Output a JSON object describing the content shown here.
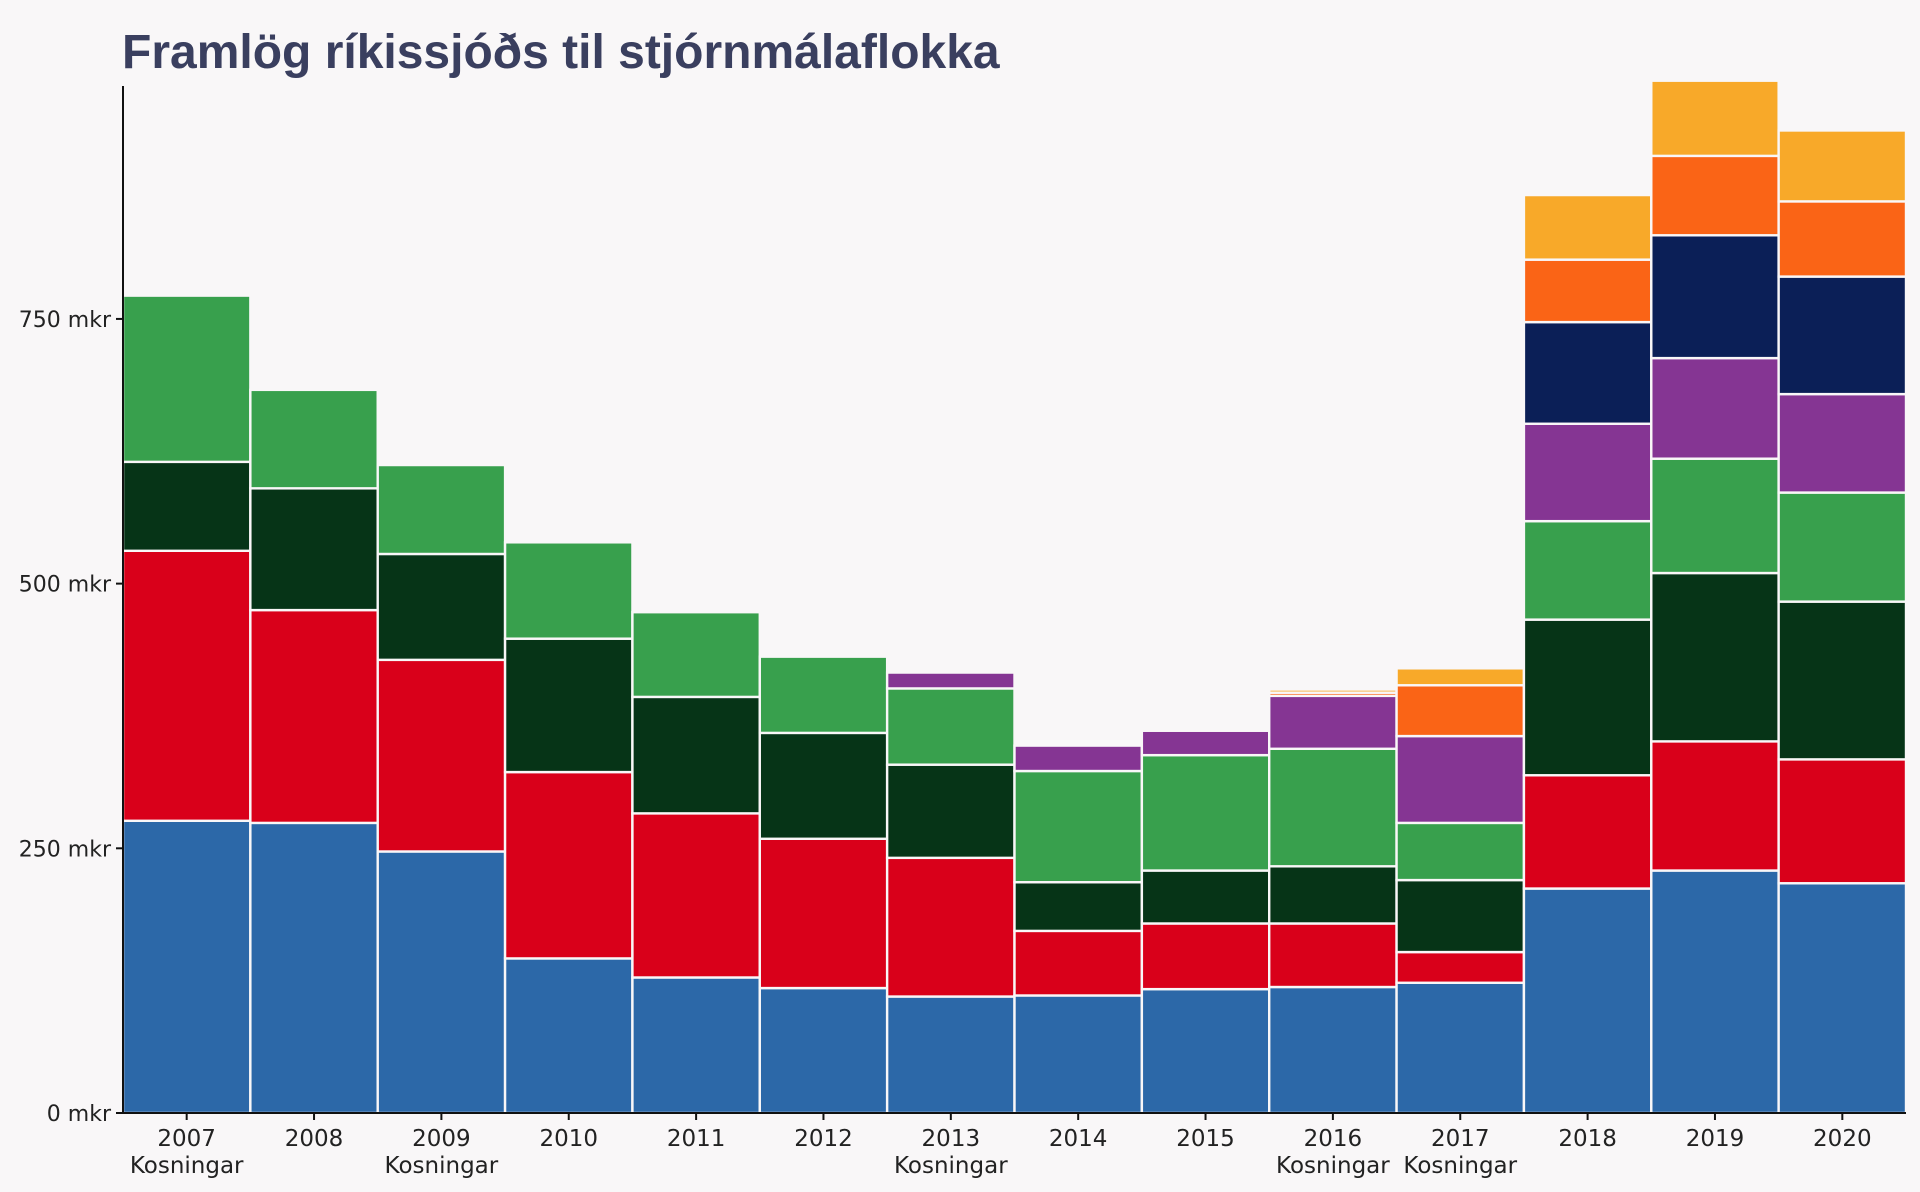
{
  "chart_data": {
    "type": "bar",
    "stacked": true,
    "title": "Framlög ríkissjóðs til stjórnmálaflokka",
    "xlabel": "",
    "ylabel": "",
    "ylim": [
      0,
      970
    ],
    "yticks": [
      0,
      250,
      500,
      750
    ],
    "ytick_labels": [
      "0 mkr",
      "250 mkr",
      "500 mkr",
      "750 mkr"
    ],
    "grid": false,
    "legend": "none",
    "categories": [
      "2007",
      "2008",
      "2009",
      "2010",
      "2011",
      "2012",
      "2013",
      "2014",
      "2015",
      "2016",
      "2017",
      "2018",
      "2019",
      "2020"
    ],
    "annotations": [
      "Kosningar",
      "",
      "Kosningar",
      "",
      "",
      "",
      "Kosningar",
      "",
      "",
      "Kosningar",
      "Kosningar",
      "",
      "",
      ""
    ],
    "series": [
      {
        "color": "#2c68a8",
        "values": [
          276,
          274,
          247,
          146,
          128,
          118,
          110,
          111,
          117,
          119,
          123,
          212,
          229,
          217
        ]
      },
      {
        "color": "#d9001a",
        "values": [
          255,
          201,
          181,
          176,
          155,
          141,
          131,
          61,
          62,
          60,
          29,
          107,
          122,
          117
        ]
      },
      {
        "color": "#063417",
        "values": [
          84,
          115,
          100,
          126,
          110,
          100,
          88,
          46,
          50,
          54,
          68,
          147,
          159,
          149
        ]
      },
      {
        "color": "#38a04d",
        "values": [
          157,
          93,
          84,
          91,
          80,
          72,
          72,
          105,
          109,
          111,
          54,
          93,
          108,
          103
        ]
      },
      {
        "color": "#853593",
        "values": [
          0,
          0,
          0,
          0,
          0,
          0,
          15,
          24,
          23,
          50,
          82,
          92,
          95,
          93
        ]
      },
      {
        "color": "#0b1f57",
        "values": [
          0,
          0,
          0,
          0,
          0,
          0,
          0,
          0,
          0,
          0,
          0,
          96,
          116,
          111
        ]
      },
      {
        "color": "#fa6416",
        "values": [
          0,
          0,
          0,
          0,
          0,
          0,
          0,
          0,
          0,
          3,
          48,
          59,
          75,
          71
        ]
      },
      {
        "color": "#f8a929",
        "values": [
          0,
          0,
          0,
          0,
          0,
          0,
          0,
          0,
          0,
          3,
          16,
          61,
          71,
          67
        ]
      }
    ]
  }
}
